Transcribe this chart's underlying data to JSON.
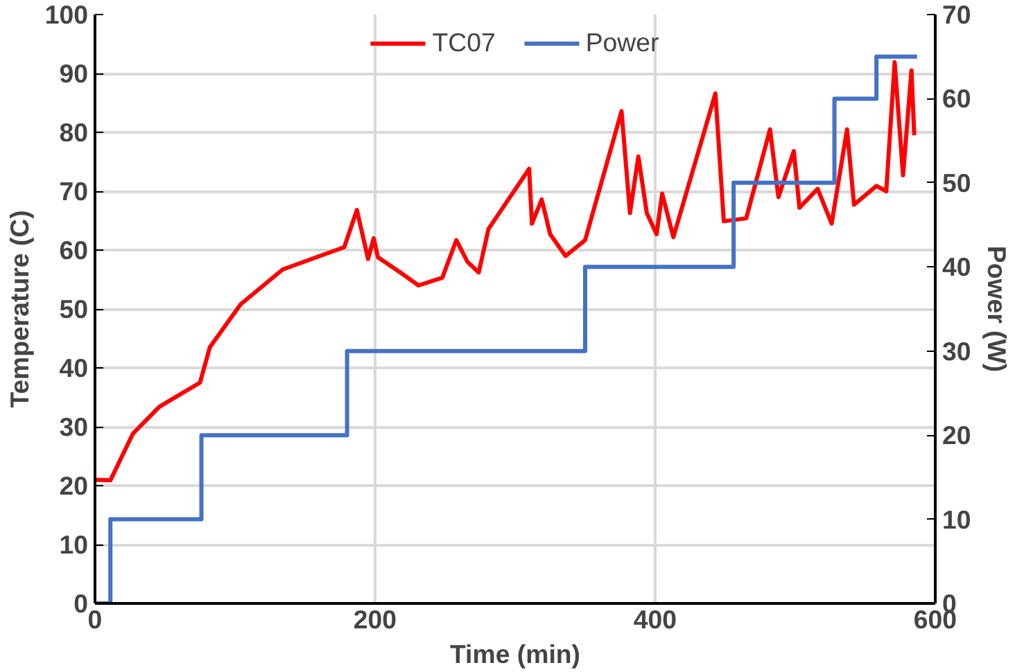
{
  "chart_data": {
    "type": "line",
    "xlabel": "Time (min)",
    "ylabel": "Temperature (C)",
    "y2label": "Power (W)",
    "xlim": [
      0,
      600
    ],
    "xticks": [
      0,
      200,
      400,
      600
    ],
    "ylim": [
      0,
      100
    ],
    "yticks": [
      0,
      10,
      20,
      30,
      40,
      50,
      60,
      70,
      80,
      90,
      100
    ],
    "y2lim": [
      0,
      70
    ],
    "y2ticks": [
      0,
      10,
      20,
      30,
      40,
      50,
      60,
      70
    ],
    "grid": true,
    "legend": "top",
    "marker": "none",
    "line_style": "solid",
    "series": [
      {
        "name": "TC07",
        "color": "#ff0000",
        "x": [
          0,
          11,
          27,
          46,
          75,
          82,
          104,
          134,
          178,
          187,
          195,
          199,
          202,
          218,
          231,
          248,
          258,
          266,
          274,
          281,
          310,
          312,
          319,
          325,
          336,
          350,
          376,
          382,
          388,
          394,
          401,
          405,
          413,
          443,
          449,
          465,
          482,
          488,
          499,
          503,
          516,
          526,
          537,
          542,
          558,
          565,
          571,
          577,
          583,
          585
        ],
        "values": [
          21,
          20.9,
          28.8,
          33.4,
          37.5,
          43.5,
          50.8,
          56.7,
          60.5,
          66.8,
          58.5,
          62,
          58.8,
          56.2,
          54,
          55.3,
          61.7,
          58,
          56.2,
          63.6,
          73.8,
          64.5,
          68.6,
          62.7,
          59,
          61.7,
          83.6,
          66.3,
          75.9,
          66.3,
          62.7,
          69.6,
          62.2,
          86.6,
          64.9,
          65.4,
          80.5,
          69,
          76.8,
          67.2,
          70.4,
          64.5,
          80.5,
          67.7,
          70.9,
          70,
          91.9,
          72.7,
          90.5,
          79.5
        ]
      },
      {
        "name": "Power",
        "type": "step",
        "axis": "y2",
        "color": "#4472c4",
        "x": [
          0,
          11,
          76,
          180,
          350,
          456,
          528,
          558,
          587
        ],
        "values": [
          0,
          10,
          20,
          30,
          40,
          50,
          60,
          65,
          65
        ]
      }
    ]
  }
}
